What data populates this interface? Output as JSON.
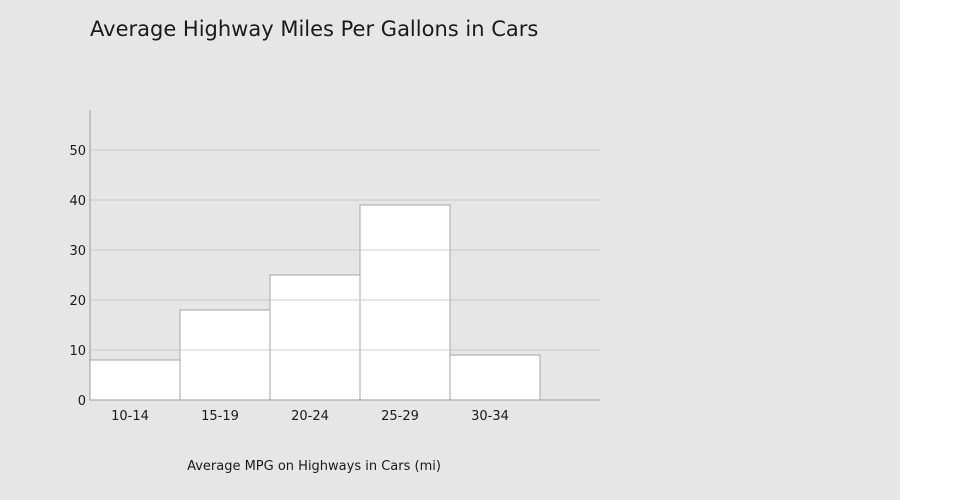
{
  "chart_data": {
    "type": "bar",
    "title": "Average Highway Miles Per Gallons in Cars",
    "xlabel": "Average MPG on Highways in Cars (mi)",
    "ylabel": "",
    "categories": [
      "10-14",
      "15-19",
      "20-24",
      "25-29",
      "30-34"
    ],
    "values": [
      8,
      18,
      25,
      39,
      9
    ],
    "ylim": [
      0,
      58
    ],
    "yticks": [
      0,
      10,
      20,
      30,
      40,
      50
    ],
    "grid": true,
    "legend": "none",
    "bar_fill": "#ffffff",
    "bar_stroke": "#a6a6a6",
    "grid_color": "#c8c8c8",
    "axis_color": "#999999",
    "background": "#e6e6e6"
  }
}
